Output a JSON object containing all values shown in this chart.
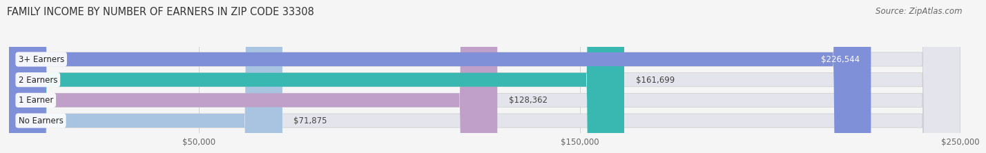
{
  "title": "FAMILY INCOME BY NUMBER OF EARNERS IN ZIP CODE 33308",
  "source": "Source: ZipAtlas.com",
  "categories": [
    "No Earners",
    "1 Earner",
    "2 Earners",
    "3+ Earners"
  ],
  "values": [
    71875,
    128362,
    161699,
    226544
  ],
  "bar_colors": [
    "#a8c4e0",
    "#c0a0c8",
    "#38b8b0",
    "#8090d8"
  ],
  "label_colors": [
    "#333333",
    "#333333",
    "#333333",
    "#ffffff"
  ],
  "background_color": "#f5f5f5",
  "bar_bg_color": "#e4e4ec",
  "xlim": [
    0,
    250000
  ],
  "xticks": [
    50000,
    150000,
    250000
  ],
  "xtick_labels": [
    "$50,000",
    "$150,000",
    "$250,000"
  ],
  "title_fontsize": 10.5,
  "source_fontsize": 8.5,
  "bar_height": 0.68
}
